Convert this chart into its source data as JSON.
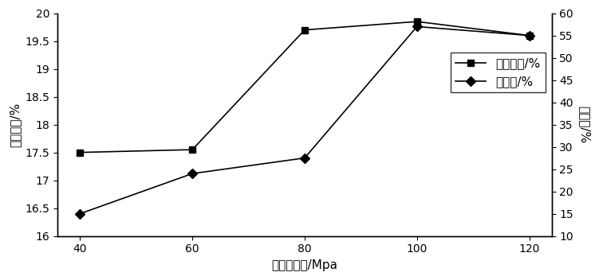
{
  "x": [
    40,
    60,
    80,
    100,
    120
  ],
  "extraction_rate": [
    17.5,
    17.55,
    19.7,
    19.85,
    19.6
  ],
  "scavenging_rate": [
    15.0,
    24.0,
    27.5,
    57.0,
    55.0
  ],
  "left_ylim": [
    16,
    20
  ],
  "left_yticks": [
    16,
    16.5,
    17,
    17.5,
    18,
    18.5,
    19,
    19.5,
    20
  ],
  "right_ylim": [
    10,
    60
  ],
  "right_yticks": [
    10,
    15,
    20,
    25,
    30,
    35,
    40,
    45,
    50,
    55,
    60
  ],
  "xlabel": "微射流压力/Mpa",
  "left_ylabel": "提取得率/%",
  "right_ylabel": "清除率/%",
  "legend_label1": "提取得率/%",
  "legend_label2": "清除率/%",
  "line_color": "#000000",
  "marker_square": "s",
  "marker_diamond": "D",
  "tick_fontsize": 10,
  "label_fontsize": 11,
  "legend_fontsize": 11
}
